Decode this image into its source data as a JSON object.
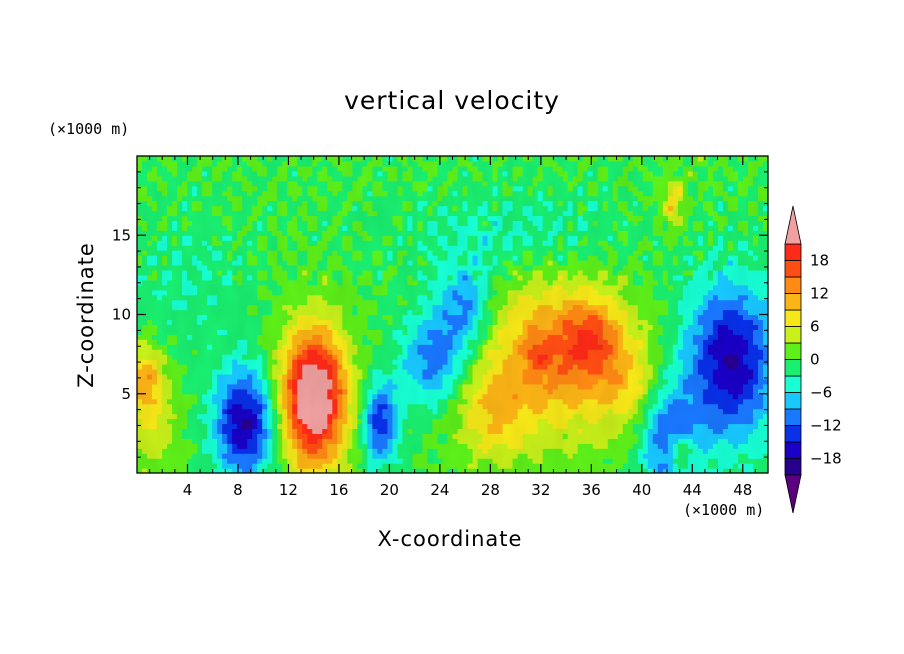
{
  "chart_data": {
    "type": "heatmap",
    "title": "vertical velocity",
    "xlabel": "X-coordinate",
    "ylabel": "Z-coordinate",
    "x_unit_label": "(×1000 m)",
    "y_unit_label": "(×1000 m)",
    "xlim": [
      0,
      50
    ],
    "ylim": [
      0,
      20
    ],
    "x_ticks": [
      4,
      8,
      12,
      16,
      20,
      24,
      28,
      32,
      36,
      40,
      44,
      48
    ],
    "y_ticks": [
      5,
      10,
      15
    ],
    "colorbar": {
      "labels": [
        "18",
        "12",
        "6",
        "0",
        "−6",
        "−12",
        "−18"
      ],
      "label_values": [
        18,
        12,
        6,
        0,
        -6,
        -12,
        -18
      ],
      "levels": [
        -21,
        -18,
        -15,
        -12,
        -9,
        -6,
        -3,
        0,
        3,
        6,
        9,
        12,
        15,
        18,
        21
      ],
      "colors": [
        "#5a007f",
        "#27008f",
        "#1a00c8",
        "#0a30e8",
        "#1a78ff",
        "#18c8ff",
        "#18ffd4",
        "#1aef70",
        "#5ef01a",
        "#c8f01a",
        "#f6e818",
        "#fcb516",
        "#ff8a14",
        "#ff4e14",
        "#ff2a18",
        "#f0a0a0"
      ],
      "extend": "both"
    },
    "features": [
      {
        "x": 14,
        "z": 4.8,
        "w": 28,
        "sx": 1.8,
        "sz": 3.0
      },
      {
        "x": 8.5,
        "z": 3.2,
        "w": -18,
        "sx": 1.7,
        "sz": 2.4
      },
      {
        "x": 19.3,
        "z": 3.2,
        "w": -14,
        "sx": 1.0,
        "sz": 1.8
      },
      {
        "x": 23.5,
        "z": 7.2,
        "w": -11,
        "sx": 1.8,
        "sz": 2.0
      },
      {
        "x": 26,
        "z": 10.5,
        "w": -10,
        "sx": 1.6,
        "sz": 1.8
      },
      {
        "x": 33,
        "z": 7.5,
        "w": 13,
        "sx": 4.0,
        "sz": 3.5
      },
      {
        "x": 36,
        "z": 8.5,
        "w": 9,
        "sx": 1.6,
        "sz": 1.7
      },
      {
        "x": 31.8,
        "z": 7.5,
        "w": 5,
        "sx": 0.8,
        "sz": 0.8
      },
      {
        "x": 39,
        "z": 5.5,
        "w": 6,
        "sx": 2.0,
        "sz": 2.0
      },
      {
        "x": 28,
        "z": 3.5,
        "w": 7,
        "sx": 2.0,
        "sz": 2.0
      },
      {
        "x": 47,
        "z": 7.0,
        "w": -18,
        "sx": 2.5,
        "sz": 3.5
      },
      {
        "x": 0.7,
        "z": 6.0,
        "w": 10,
        "sx": 1.0,
        "sz": 1.5
      },
      {
        "x": 1.2,
        "z": 3.0,
        "w": 5,
        "sx": 1.5,
        "sz": 2.0
      },
      {
        "x": 42,
        "z": 2.2,
        "w": -12,
        "sx": 1.6,
        "sz": 2.5
      },
      {
        "x": 43,
        "z": 1.3,
        "w": 9,
        "sx": 0.7,
        "sz": 0.8
      },
      {
        "x": 42.5,
        "z": 17,
        "w": 8,
        "sx": 0.6,
        "sz": 1.2
      },
      {
        "x": 30,
        "z": 15,
        "w": -4,
        "sx": 6,
        "sz": 2
      },
      {
        "x": 4,
        "z": 12,
        "w": -3,
        "sx": 3,
        "sz": 3
      }
    ]
  }
}
